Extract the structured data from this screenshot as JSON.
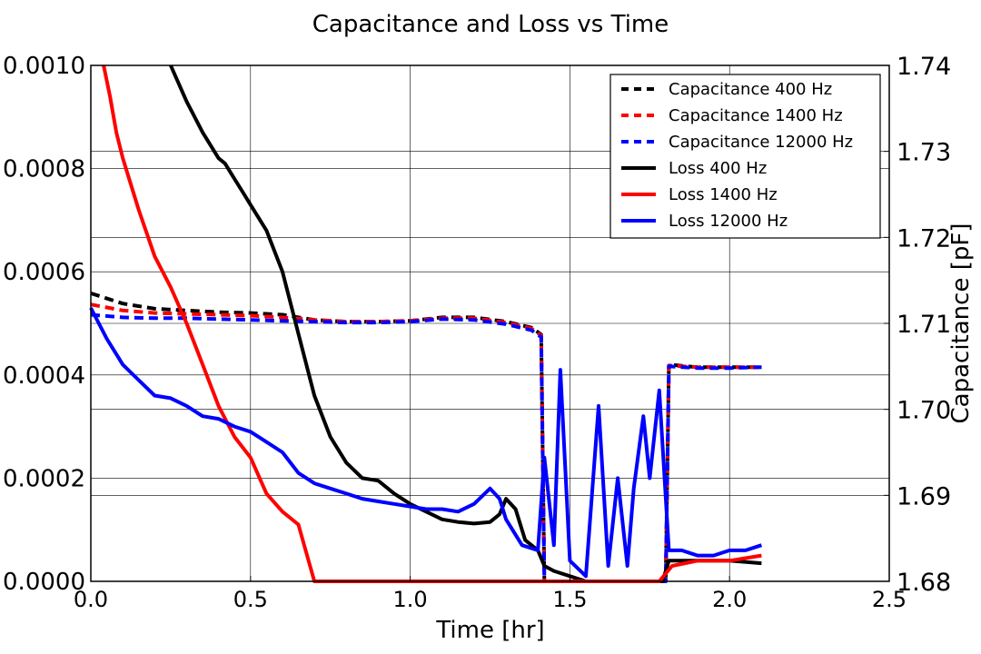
{
  "chart_data": {
    "type": "line",
    "title": "Capacitance and Loss vs Time",
    "xlabel": "Time [hr]",
    "ylabel_left": "",
    "ylabel_right": "Capacitance [pF]",
    "xlim": [
      0.0,
      2.5
    ],
    "ylim_left": [
      0.0,
      0.001
    ],
    "ylim_right": [
      1.68,
      1.74
    ],
    "x_ticks": [
      "0.0",
      "0.5",
      "1.0",
      "1.5",
      "2.0",
      "2.5"
    ],
    "y_left_ticks": [
      "0.0000",
      "0.0002",
      "0.0004",
      "0.0006",
      "0.0008",
      "0.0010"
    ],
    "y_right_ticks": [
      "1.68",
      "1.69",
      "1.70",
      "1.71",
      "1.72",
      "1.73",
      "1.74"
    ],
    "grid": true,
    "legend_position": "top-right",
    "series": [
      {
        "name": "Capacitance 400 Hz",
        "axis": "right",
        "style": "dashed",
        "color": "#000000",
        "x": [
          0.0,
          0.1,
          0.2,
          0.3,
          0.4,
          0.5,
          0.6,
          0.7,
          0.8,
          0.9,
          1.0,
          1.1,
          1.2,
          1.3,
          1.38,
          1.41,
          1.42,
          1.8,
          1.81,
          1.9,
          2.0,
          2.1
        ],
        "y": [
          1.7135,
          1.7123,
          1.7117,
          1.7115,
          1.7113,
          1.7112,
          1.711,
          1.7104,
          1.7102,
          1.7102,
          1.7103,
          1.7107,
          1.7107,
          1.7102,
          1.7095,
          1.7087,
          1.68,
          1.68,
          1.7052,
          1.7049,
          1.7049,
          1.7049
        ]
      },
      {
        "name": "Capacitance 1400 Hz",
        "axis": "right",
        "style": "dashed",
        "color": "#ff0000",
        "x": [
          0.0,
          0.1,
          0.2,
          0.3,
          0.4,
          0.5,
          0.6,
          0.7,
          0.8,
          0.9,
          1.0,
          1.1,
          1.2,
          1.3,
          1.38,
          1.41,
          1.42,
          1.8,
          1.81,
          1.9,
          2.0,
          2.1
        ],
        "y": [
          1.7122,
          1.7115,
          1.7112,
          1.7111,
          1.711,
          1.7109,
          1.7107,
          1.7104,
          1.7102,
          1.7102,
          1.7103,
          1.7106,
          1.7106,
          1.7101,
          1.7094,
          1.7086,
          1.68,
          1.68,
          1.7051,
          1.7049,
          1.7049,
          1.7049
        ]
      },
      {
        "name": "Capacitance 12000 Hz",
        "axis": "right",
        "style": "dashed",
        "color": "#0000ff",
        "x": [
          0.0,
          0.1,
          0.2,
          0.3,
          0.4,
          0.5,
          0.6,
          0.7,
          0.8,
          0.9,
          1.0,
          1.1,
          1.2,
          1.3,
          1.38,
          1.41,
          1.42,
          1.8,
          1.81,
          1.9,
          2.0,
          2.1
        ],
        "y": [
          1.711,
          1.7107,
          1.7106,
          1.7106,
          1.7105,
          1.7104,
          1.7103,
          1.7102,
          1.7101,
          1.7101,
          1.7102,
          1.7105,
          1.7104,
          1.7099,
          1.7092,
          1.7084,
          1.68,
          1.68,
          1.705,
          1.7048,
          1.7048,
          1.7049
        ]
      },
      {
        "name": "Loss 400 Hz",
        "axis": "left",
        "style": "solid",
        "color": "#000000",
        "x": [
          0.25,
          0.3,
          0.35,
          0.4,
          0.42,
          0.45,
          0.48,
          0.5,
          0.55,
          0.6,
          0.65,
          0.7,
          0.75,
          0.8,
          0.85,
          0.9,
          0.95,
          1.0,
          1.05,
          1.1,
          1.15,
          1.2,
          1.25,
          1.28,
          1.3,
          1.33,
          1.36,
          1.4,
          1.42,
          1.45,
          1.5,
          1.55,
          1.6,
          1.65,
          1.7,
          1.75,
          1.79,
          1.81,
          1.85,
          1.9,
          2.0,
          2.1
        ],
        "y": [
          0.001,
          0.00093,
          0.00087,
          0.00082,
          0.00081,
          0.00078,
          0.00075,
          0.00073,
          0.00068,
          0.0006,
          0.00048,
          0.00036,
          0.00028,
          0.00023,
          0.0002,
          0.000195,
          0.00017,
          0.00015,
          0.000135,
          0.00012,
          0.000115,
          0.000112,
          0.000115,
          0.00013,
          0.00016,
          0.00014,
          8e-05,
          6e-05,
          3e-05,
          2e-05,
          1e-05,
          0.0,
          0.0,
          0.0,
          0.0,
          0.0,
          0.0,
          4e-05,
          4e-05,
          4e-05,
          4e-05,
          3.5e-05
        ]
      },
      {
        "name": "Loss 1400 Hz",
        "axis": "left",
        "style": "solid",
        "color": "#ff0000",
        "x": [
          0.04,
          0.06,
          0.08,
          0.1,
          0.12,
          0.15,
          0.2,
          0.25,
          0.3,
          0.35,
          0.4,
          0.45,
          0.5,
          0.55,
          0.6,
          0.65,
          0.7,
          0.75,
          0.8,
          0.85,
          0.9,
          0.95,
          1.0,
          1.05,
          1.1,
          1.15,
          1.2,
          1.25,
          1.28,
          1.3,
          1.35,
          1.4,
          1.42,
          1.45,
          1.48,
          1.5,
          1.55,
          1.6,
          1.65,
          1.7,
          1.72,
          1.75,
          1.78,
          1.82,
          1.9,
          2.0,
          2.1
        ],
        "y": [
          0.001,
          0.00094,
          0.00087,
          0.00082,
          0.00078,
          0.00072,
          0.00063,
          0.00057,
          0.0005,
          0.00042,
          0.00034,
          0.00028,
          0.00024,
          0.00017,
          0.000135,
          0.00011,
          0.0,
          0.0,
          0.0,
          0.0,
          0.0,
          0.0,
          0.0,
          0.0,
          0.0,
          0.0,
          0.0,
          0.0,
          0.0,
          0.0,
          0.0,
          0.0,
          0.0,
          0.0,
          0.0,
          0.0,
          0.0,
          0.0,
          0.0,
          0.0,
          0.0,
          0.0,
          0.0,
          3e-05,
          4e-05,
          4e-05,
          5e-05
        ]
      },
      {
        "name": "Loss 12000 Hz",
        "axis": "left",
        "style": "solid",
        "color": "#0000ff",
        "x": [
          0.0,
          0.05,
          0.1,
          0.15,
          0.2,
          0.25,
          0.3,
          0.35,
          0.4,
          0.45,
          0.5,
          0.55,
          0.6,
          0.65,
          0.7,
          0.75,
          0.8,
          0.85,
          0.9,
          0.95,
          1.0,
          1.05,
          1.1,
          1.15,
          1.2,
          1.25,
          1.28,
          1.3,
          1.35,
          1.4,
          1.42,
          1.45,
          1.47,
          1.5,
          1.55,
          1.59,
          1.62,
          1.65,
          1.68,
          1.7,
          1.73,
          1.75,
          1.78,
          1.81,
          1.85,
          1.9,
          1.95,
          2.0,
          2.05,
          2.1
        ],
        "y": [
          0.00053,
          0.00047,
          0.00042,
          0.00039,
          0.00036,
          0.000355,
          0.00034,
          0.00032,
          0.000315,
          0.0003,
          0.00029,
          0.00027,
          0.00025,
          0.00021,
          0.00019,
          0.00018,
          0.00017,
          0.00016,
          0.000155,
          0.00015,
          0.000145,
          0.00014,
          0.00014,
          0.000135,
          0.00015,
          0.00018,
          0.00016,
          0.00012,
          7e-05,
          6e-05,
          0.00024,
          7e-05,
          0.00041,
          4e-05,
          1e-05,
          0.00034,
          3e-05,
          0.0002,
          3e-05,
          0.00018,
          0.00032,
          0.0002,
          0.00037,
          6e-05,
          6e-05,
          5e-05,
          5e-05,
          6e-05,
          6e-05,
          7e-05
        ]
      }
    ]
  }
}
